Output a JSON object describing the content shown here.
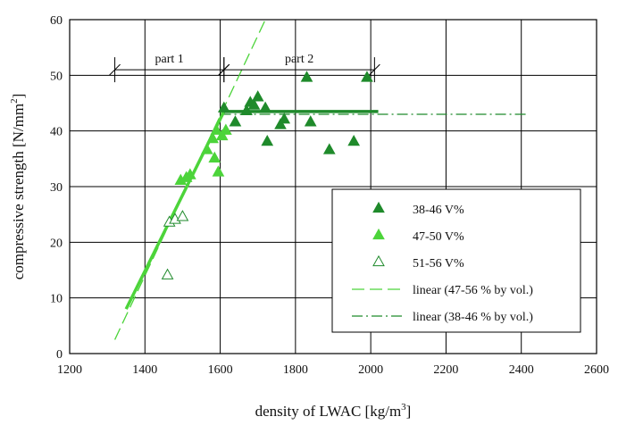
{
  "chart_data": {
    "type": "scatter",
    "xlabel": "density of LWAC [kg/m",
    "xlabel_sup": "3",
    "xlabel_end": "]",
    "ylabel": "compressive strength [N/mm",
    "ylabel_sup": "2",
    "ylabel_end": "]",
    "xlim": [
      1200,
      2600
    ],
    "ylim": [
      0,
      60
    ],
    "x_ticks": [
      1200,
      1400,
      1600,
      1800,
      2000,
      2200,
      2400,
      2600
    ],
    "y_ticks": [
      0,
      10,
      20,
      30,
      40,
      50,
      60
    ],
    "grid": true,
    "legend_position": "bottom-right",
    "colors": {
      "dark_green": "#1f8a2b",
      "light_green": "#4cd43a",
      "grid": "#000000"
    },
    "series": [
      {
        "name": "38-46 V%",
        "marker": "filled-triangle",
        "color": "#1f8a2b",
        "points": [
          [
            1610,
            44
          ],
          [
            1640,
            41.5
          ],
          [
            1670,
            43.5
          ],
          [
            1680,
            45
          ],
          [
            1690,
            44.5
          ],
          [
            1700,
            46
          ],
          [
            1720,
            44
          ],
          [
            1725,
            38
          ],
          [
            1760,
            41
          ],
          [
            1770,
            42
          ],
          [
            1830,
            49.5
          ],
          [
            1840,
            41.5
          ],
          [
            1890,
            36.5
          ],
          [
            1955,
            38
          ],
          [
            1990,
            49.5
          ]
        ]
      },
      {
        "name": "47-50 V%",
        "marker": "filled-triangle",
        "color": "#4cd43a",
        "points": [
          [
            1495,
            31
          ],
          [
            1510,
            31.5
          ],
          [
            1520,
            32
          ],
          [
            1565,
            36.5
          ],
          [
            1580,
            38.5
          ],
          [
            1585,
            35
          ],
          [
            1590,
            40
          ],
          [
            1595,
            32.5
          ],
          [
            1605,
            39
          ],
          [
            1615,
            40
          ]
        ]
      },
      {
        "name": "51-56 V%",
        "marker": "hollow-triangle",
        "color": "#1f8a2b",
        "points": [
          [
            1460,
            14
          ],
          [
            1465,
            23.5
          ],
          [
            1480,
            24
          ],
          [
            1500,
            24.5
          ]
        ]
      }
    ],
    "lines": [
      {
        "name": "linear (47-56 % by vol.)",
        "style": "long-dash",
        "color": "#4cd43a",
        "x": [
          1320,
          1720
        ],
        "y": [
          2.5,
          60
        ]
      },
      {
        "name": "linear (38-46 % by vol.)",
        "style": "dash-dot",
        "color": "#1f8a2b",
        "x": [
          1600,
          2420
        ],
        "y": [
          43,
          43
        ]
      }
    ],
    "fit_solid_lines": [
      {
        "color": "#4cd43a",
        "x": [
          1350,
          1610
        ],
        "y": [
          8,
          43.5
        ]
      },
      {
        "color": "#1f8a2b",
        "x": [
          1610,
          2020
        ],
        "y": [
          43.5,
          43.5
        ]
      }
    ],
    "annotations": [
      {
        "label": "part 1",
        "x_range": [
          1320,
          1610
        ],
        "y": 51
      },
      {
        "label": "part 2",
        "x_range": [
          1610,
          2010
        ],
        "y": 51
      }
    ]
  }
}
